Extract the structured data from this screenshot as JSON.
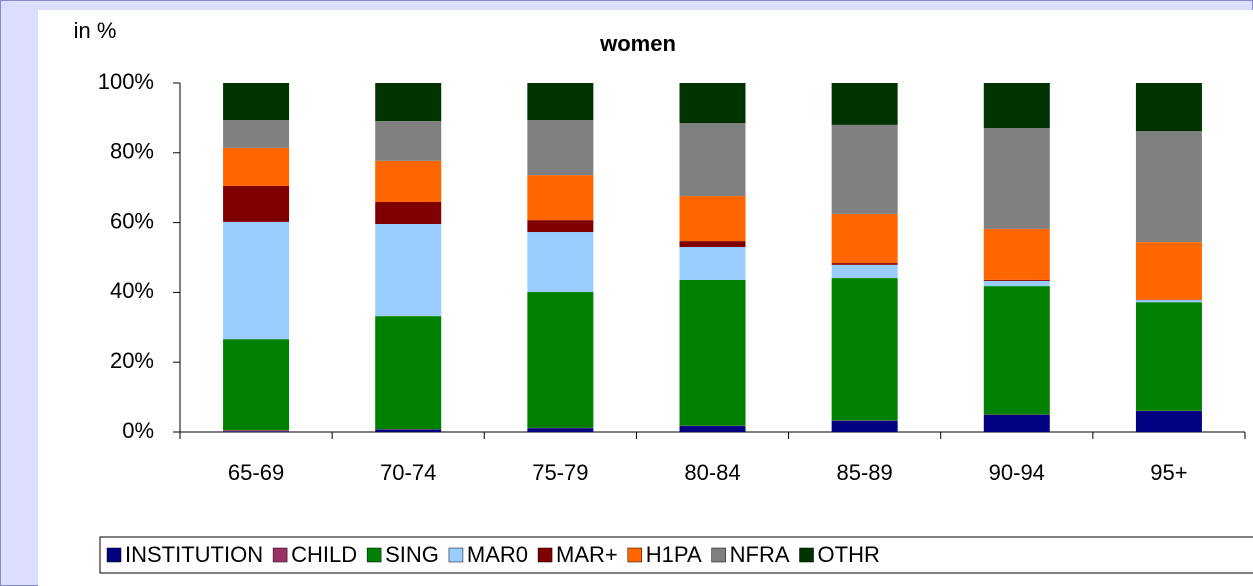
{
  "chart_data": {
    "type": "stacked_bar",
    "title": "women",
    "y_label": "in %",
    "categories": [
      "65-69",
      "70-74",
      "75-79",
      "80-84",
      "85-89",
      "90-94",
      "95+"
    ],
    "series": [
      {
        "name": "INSTITUTION",
        "color": "#000080",
        "values": [
          0.2,
          0.7,
          1.1,
          1.7,
          3.2,
          4.9,
          6.0
        ]
      },
      {
        "name": "CHILD",
        "color": "#993366",
        "values": [
          0.3,
          0.1,
          0.1,
          0.1,
          0.1,
          0.1,
          0.1
        ]
      },
      {
        "name": "SING",
        "color": "#008000",
        "values": [
          26.1,
          32.4,
          38.9,
          41.8,
          40.8,
          36.8,
          31.1
        ]
      },
      {
        "name": "MAR0",
        "color": "#99ccff",
        "values": [
          33.6,
          26.4,
          17.2,
          9.4,
          3.8,
          1.5,
          0.6
        ]
      },
      {
        "name": "MAR+",
        "color": "#800000",
        "values": [
          10.3,
          6.3,
          3.4,
          1.7,
          0.5,
          0.3,
          0.1
        ]
      },
      {
        "name": "H1PA",
        "color": "#ff6600",
        "values": [
          10.9,
          11.8,
          12.9,
          12.9,
          14.1,
          14.6,
          16.5
        ]
      },
      {
        "name": "NFRA",
        "color": "#808080",
        "values": [
          8.0,
          11.4,
          15.8,
          20.9,
          25.5,
          28.9,
          31.8
        ]
      },
      {
        "name": "OTHR",
        "color": "#003300",
        "values": [
          10.6,
          10.9,
          10.6,
          11.5,
          12.0,
          12.9,
          13.8
        ]
      }
    ],
    "ylim": [
      0,
      100
    ],
    "yticks": [
      {
        "value": 0,
        "label": "0%"
      },
      {
        "value": 20,
        "label": "20%"
      },
      {
        "value": 40,
        "label": "40%"
      },
      {
        "value": 60,
        "label": "60%"
      },
      {
        "value": 80,
        "label": "80%"
      },
      {
        "value": 100,
        "label": "100%"
      }
    ],
    "legend": "bottom"
  }
}
